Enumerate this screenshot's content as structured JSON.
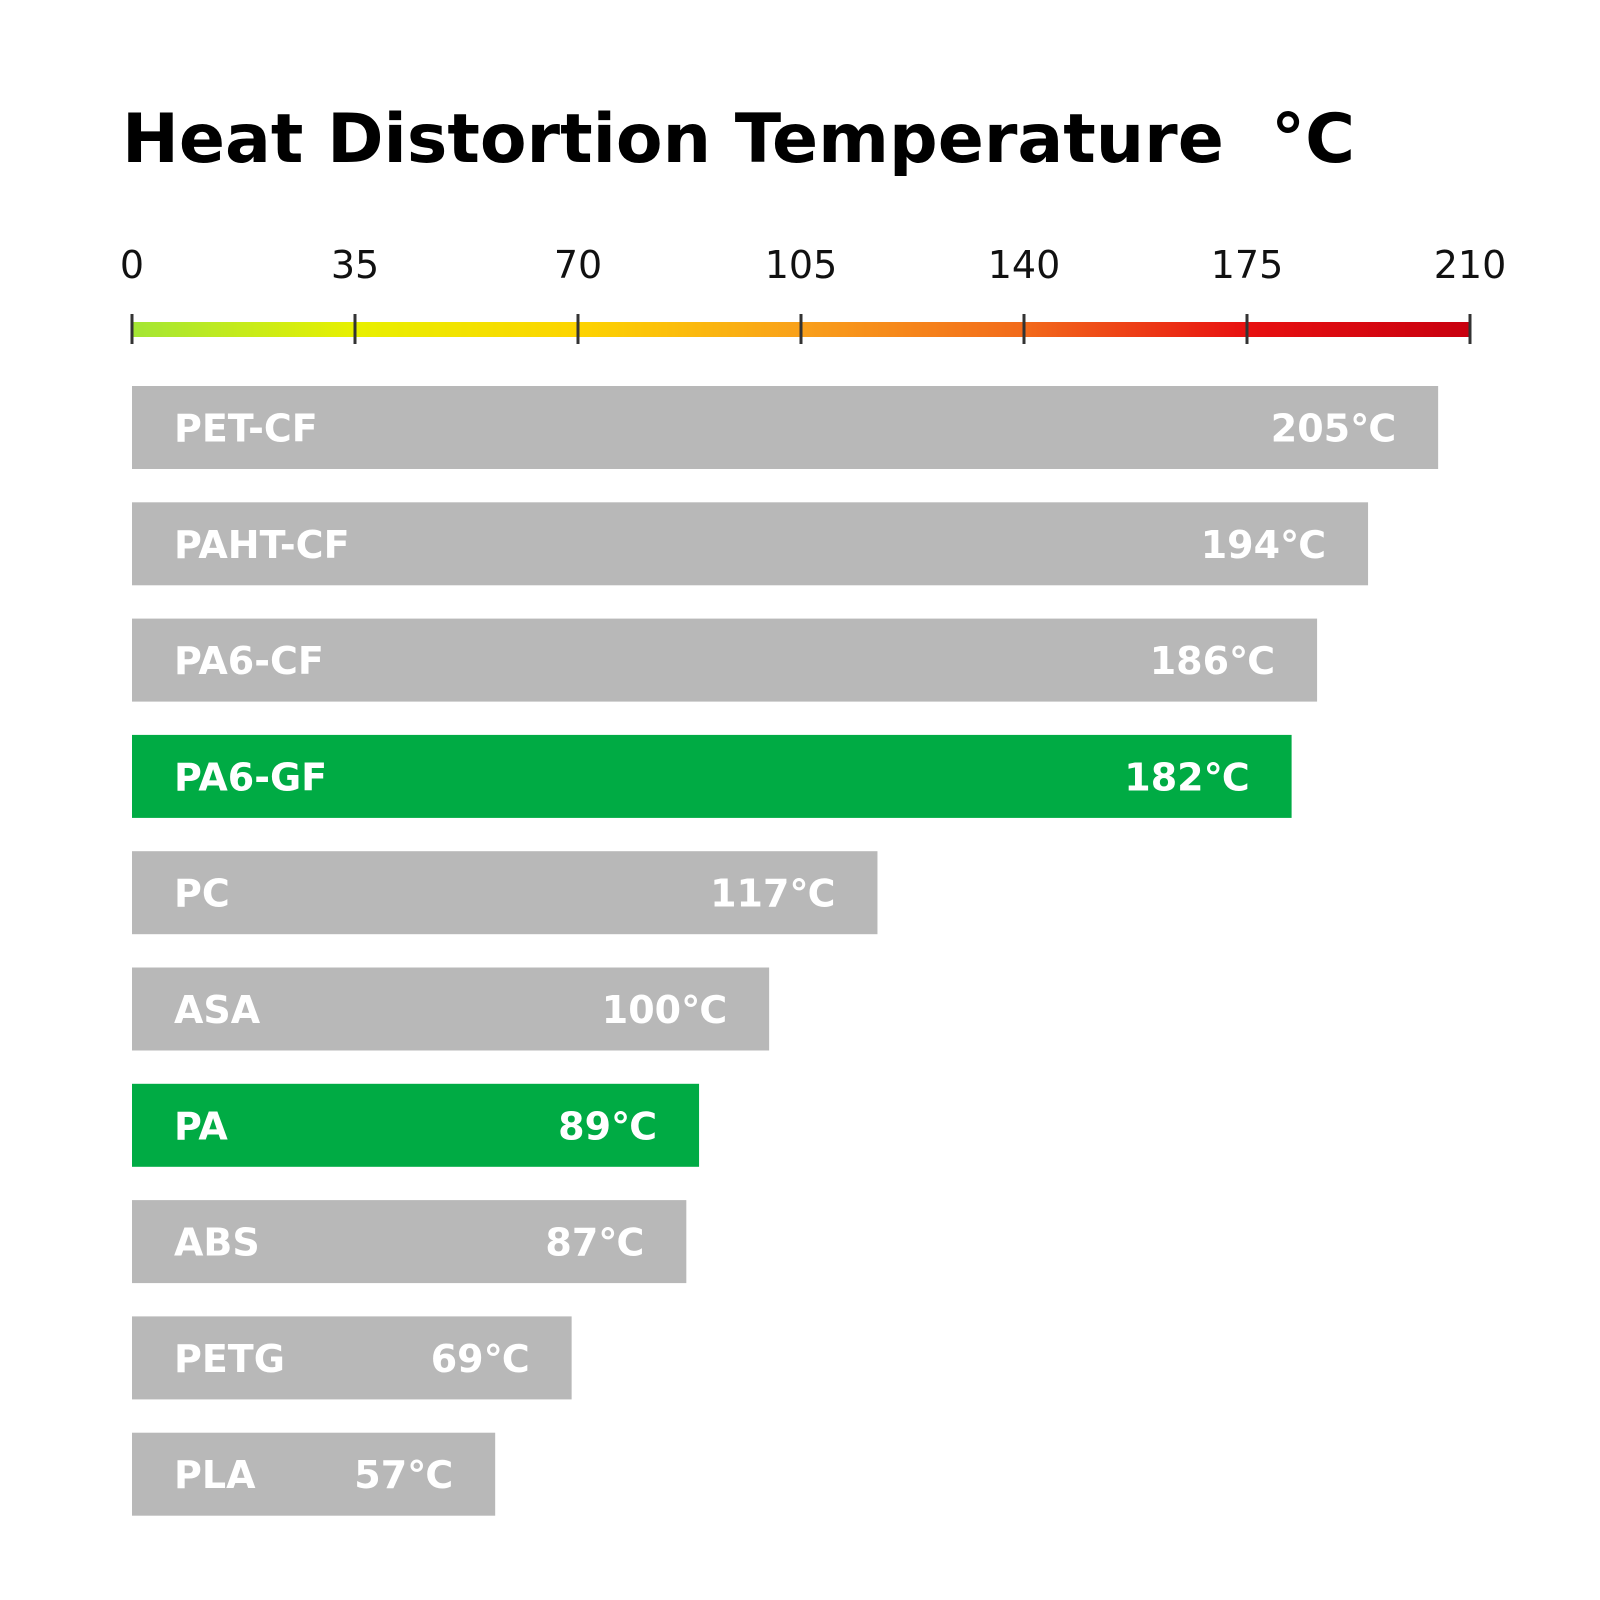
{
  "chart_data": {
    "type": "bar",
    "orientation": "horizontal",
    "title": "Heat Distortion Temperature  °C",
    "xlim": [
      0,
      210
    ],
    "ticks": [
      0,
      35,
      70,
      105,
      140,
      175,
      210
    ],
    "tick_labels": [
      "0",
      "35",
      "70",
      "105",
      "140",
      "175",
      "210"
    ],
    "scale_gradient": [
      "#a3e635",
      "#e8f000",
      "#fdd400",
      "#f9a01b",
      "#f26a1b",
      "#e81010",
      "#c8000f"
    ],
    "colors": {
      "default": "#b8b8b8",
      "highlight": "#00ab44"
    },
    "categories": [
      "PET-CF",
      "PAHT-CF",
      "PA6-CF",
      "PA6-GF",
      "PC",
      "ASA",
      "PA",
      "ABS",
      "PETG",
      "PLA"
    ],
    "values": [
      205,
      194,
      186,
      182,
      117,
      100,
      89,
      87,
      69,
      57
    ],
    "value_labels": [
      "205℃",
      "194℃",
      "186℃",
      "182℃",
      "117℃",
      "100℃",
      "89℃",
      "87℃",
      "69℃",
      "57℃"
    ],
    "highlighted": [
      "PA6-GF",
      "PA"
    ]
  }
}
